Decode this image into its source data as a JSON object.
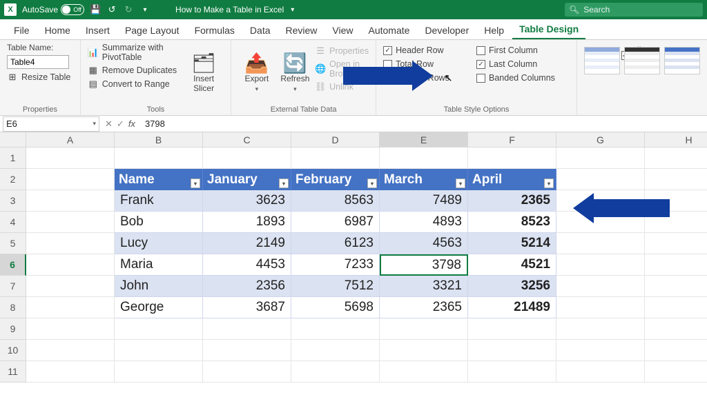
{
  "titlebar": {
    "autosave_label": "AutoSave",
    "autosave_state": "Off",
    "doc_title": "How to Make a Table in Excel",
    "search_placeholder": "Search"
  },
  "tabs": [
    "File",
    "Home",
    "Insert",
    "Page Layout",
    "Formulas",
    "Data",
    "Review",
    "View",
    "Automate",
    "Developer",
    "Help",
    "Table Design"
  ],
  "active_tab_index": 11,
  "ribbon": {
    "properties": {
      "label": "Table Name:",
      "table_name": "Table4",
      "resize": "Resize Table",
      "group_label": "Properties"
    },
    "tools": {
      "pivot": "Summarize with PivotTable",
      "dupes": "Remove Duplicates",
      "convert": "Convert to Range",
      "slicer": "Insert\nSlicer",
      "group_label": "Tools"
    },
    "external": {
      "export": "Export",
      "refresh": "Refresh",
      "props": "Properties",
      "openbr": "Open in Browser",
      "unlink": "Unlink",
      "group_label": "External Table Data"
    },
    "styleopts": {
      "header_row": "Header Row",
      "total_row": "Total Row",
      "banded_rows": "Banded Rows",
      "first_col": "First Column",
      "last_col": "Last Column",
      "banded_cols": "Banded Columns",
      "filter_btn": "Filter Button",
      "group_label": "Table Style Options",
      "checked": {
        "header_row": true,
        "total_row": false,
        "banded_rows": true,
        "first_col": false,
        "last_col": true,
        "banded_cols": false,
        "filter_btn": true
      }
    }
  },
  "formula_bar": {
    "cell_ref": "E6",
    "value": "3798"
  },
  "columns": [
    "A",
    "B",
    "C",
    "D",
    "E",
    "F",
    "G",
    "H"
  ],
  "rows": [
    "1",
    "2",
    "3",
    "4",
    "5",
    "6",
    "7",
    "8",
    "9",
    "10",
    "11"
  ],
  "selected_col_index": 4,
  "selected_row_index": 5,
  "table": {
    "headers": [
      "Name",
      "January",
      "February",
      "March",
      "April"
    ],
    "data": [
      [
        "Frank",
        3623,
        8563,
        7489,
        2365
      ],
      [
        "Bob",
        1893,
        6987,
        4893,
        8523
      ],
      [
        "Lucy",
        2149,
        6123,
        4563,
        5214
      ],
      [
        "Maria",
        4453,
        7233,
        3798,
        4521
      ],
      [
        "John",
        2356,
        7512,
        3321,
        3256
      ],
      [
        "George",
        3687,
        5698,
        2365,
        21489
      ]
    ],
    "header_bg": "#4472c4",
    "band_colors": [
      "#dbe2f1",
      "#ffffff"
    ],
    "last_col_bold": true
  },
  "colors": {
    "green": "#107c41",
    "arrow": "#103d9e"
  }
}
